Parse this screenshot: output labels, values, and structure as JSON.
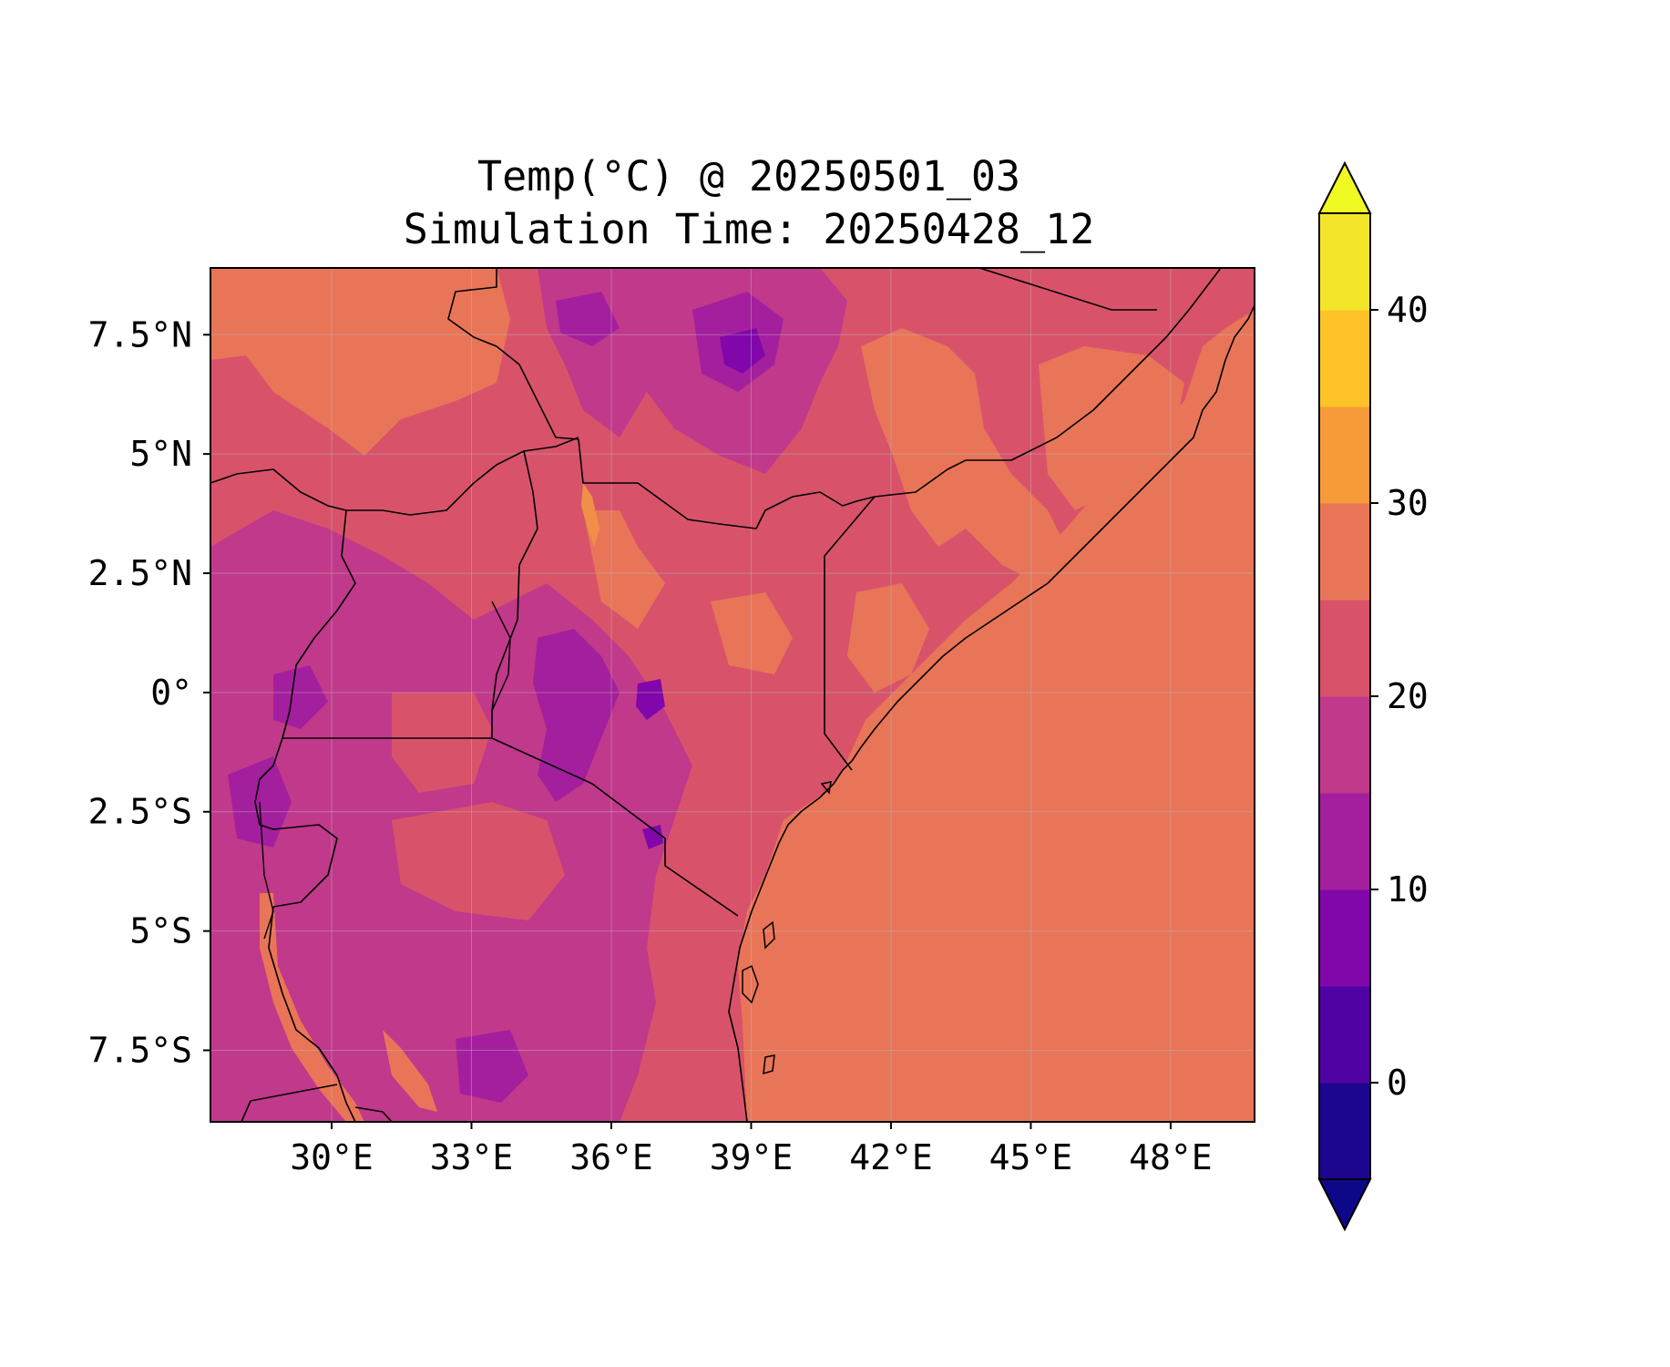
{
  "title": {
    "line1": "Temp(°C) @ 20250501_03",
    "line2": "Simulation Time: 20250428_12"
  },
  "map": {
    "variable": "Temp",
    "unit": "°C",
    "projection": "PlateCarree",
    "lon_range": [
      27.4,
      49.8
    ],
    "lat_range": [
      -9.0,
      8.9
    ],
    "x_ticks": [
      {
        "value": 30,
        "label": "30°E"
      },
      {
        "value": 33,
        "label": "33°E"
      },
      {
        "value": 36,
        "label": "36°E"
      },
      {
        "value": 39,
        "label": "39°E"
      },
      {
        "value": 42,
        "label": "42°E"
      },
      {
        "value": 45,
        "label": "45°E"
      },
      {
        "value": 48,
        "label": "48°E"
      }
    ],
    "y_ticks": [
      {
        "value": 7.5,
        "label": "7.5°N"
      },
      {
        "value": 5,
        "label": "5°N"
      },
      {
        "value": 2.5,
        "label": "2.5°N"
      },
      {
        "value": 0,
        "label": "0°"
      },
      {
        "value": -2.5,
        "label": "2.5°S"
      },
      {
        "value": -5,
        "label": "5°S"
      },
      {
        "value": -7.5,
        "label": "7.5°S"
      }
    ],
    "gridlines": true,
    "ocean_color": "#e97558",
    "land_color": "#d8536a"
  },
  "colorbar": {
    "min": -5,
    "max": 45,
    "step": 5,
    "extend": "both",
    "ticks": [
      {
        "value": 0,
        "label": "0"
      },
      {
        "value": 10,
        "label": "10"
      },
      {
        "value": 20,
        "label": "20"
      },
      {
        "value": 30,
        "label": "30"
      },
      {
        "value": 40,
        "label": "40"
      }
    ],
    "under_color": "#0d0887",
    "over_color": "#f0f921",
    "colors": [
      "#1c068e",
      "#5102a3",
      "#8107aa",
      "#a41f9e",
      "#c1398a",
      "#d8536a",
      "#e97558",
      "#f79a3a",
      "#fdc328",
      "#f3e52a"
    ]
  }
}
